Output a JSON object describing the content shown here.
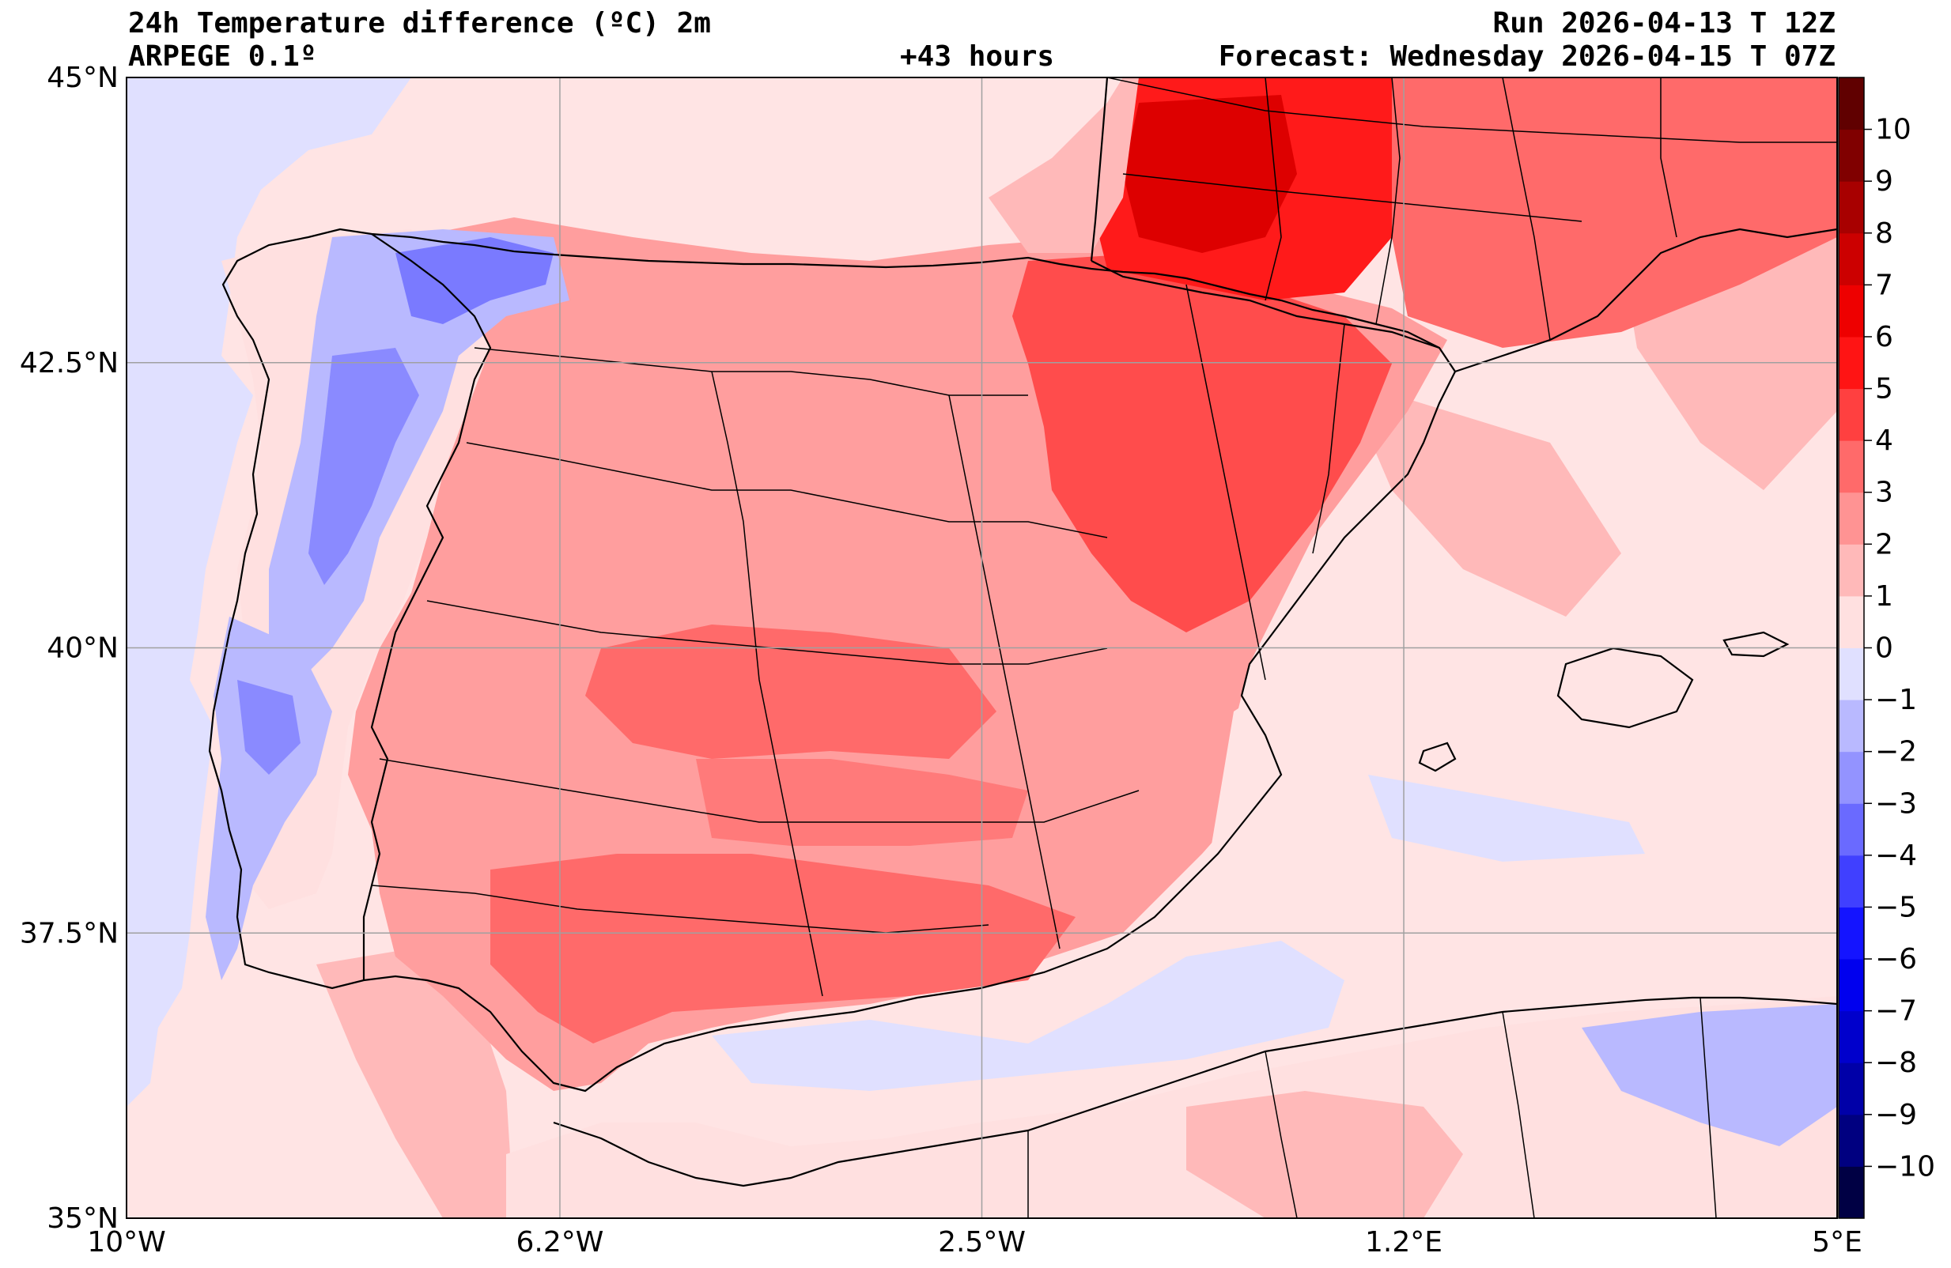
{
  "header": {
    "title": "24h Temperature difference (ºC) 2m",
    "model": "ARPEGE 0.1º",
    "lead_time": "+43 hours",
    "run": "Run 2026-04-13 T 12Z",
    "forecast": "Forecast: Wednesday 2026-04-15 T 07Z"
  },
  "axes": {
    "lat_ticks": [
      {
        "lat": 45.0,
        "label": "45°N"
      },
      {
        "lat": 42.5,
        "label": "42.5°N"
      },
      {
        "lat": 40.0,
        "label": "40°N"
      },
      {
        "lat": 37.5,
        "label": "37.5°N"
      },
      {
        "lat": 35.0,
        "label": "35°N"
      }
    ],
    "lon_ticks": [
      {
        "lon": -10.0,
        "label": "10°W"
      },
      {
        "lon": -6.2,
        "label": "6.2°W"
      },
      {
        "lon": -2.5,
        "label": "2.5°W"
      },
      {
        "lon": 1.2,
        "label": "1.2°E"
      },
      {
        "lon": 5.0,
        "label": "5°E"
      }
    ],
    "lon_range": [
      -10,
      5
    ],
    "lat_range": [
      35,
      45
    ],
    "grid": true
  },
  "colorbar": {
    "levels": [
      -11,
      -10,
      -9,
      -8,
      -7,
      -6,
      -5,
      -4,
      -3,
      -2,
      -1,
      0,
      1,
      2,
      3,
      4,
      5,
      6,
      7,
      8,
      9,
      10,
      11
    ],
    "labels": [
      "10",
      "9",
      "8",
      "7",
      "6",
      "5",
      "4",
      "3",
      "2",
      "1",
      "0",
      "−1",
      "−2",
      "−3",
      "−4",
      "−5",
      "−6",
      "−7",
      "−8",
      "−9",
      "−10"
    ],
    "colors": [
      "#000044",
      "#000080",
      "#0000a8",
      "#0000cc",
      "#0000ee",
      "#1414ff",
      "#4040ff",
      "#6a6aff",
      "#9393ff",
      "#b9b9ff",
      "#e0e0ff",
      "#ffe0e0",
      "#ffb9b9",
      "#ff9393",
      "#ff6a6a",
      "#ff4040",
      "#ff1414",
      "#ee0000",
      "#cc0000",
      "#a80000",
      "#800000",
      "#600000"
    ]
  },
  "colors": {
    "land_base": "#ff9e9e",
    "sea_base": "#ffe4e4",
    "atlantic_cool": "#e0e0ff",
    "warm_core": "#ff4040",
    "hot_core": "#dd0000",
    "cool_west": "#9393ff",
    "cold_west": "#6a6aff"
  }
}
